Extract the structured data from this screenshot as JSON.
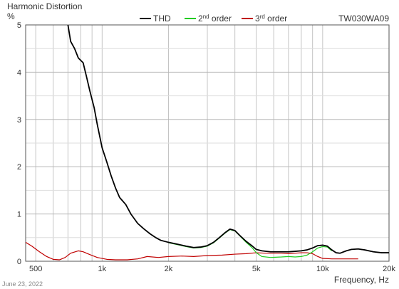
{
  "chart_data": {
    "type": "line",
    "title": "Harmonic Distortion",
    "ylabel": "%",
    "xlabel": "Frequency, Hz",
    "model": "TW030WA09",
    "date": "June 23, 2022",
    "x_scale": "log",
    "xlim": [
      450,
      20000
    ],
    "ylim": [
      0,
      5
    ],
    "grid": true,
    "legend_position": "top-center",
    "x_tick_labels": [
      {
        "value": 500,
        "label": "500"
      },
      {
        "value": 1000,
        "label": "1k"
      },
      {
        "value": 2000,
        "label": "2k"
      },
      {
        "value": 5000,
        "label": "5k"
      },
      {
        "value": 10000,
        "label": "10k"
      },
      {
        "value": 20000,
        "label": "20k"
      }
    ],
    "y_ticks": [
      0,
      1,
      2,
      3,
      4,
      5
    ],
    "series": [
      {
        "name": "THD",
        "legend_main": "THD",
        "legend_sup": "",
        "color": "#000000",
        "points": [
          [
            700,
            5.0
          ],
          [
            720,
            4.65
          ],
          [
            750,
            4.5
          ],
          [
            780,
            4.3
          ],
          [
            820,
            4.2
          ],
          [
            850,
            3.9
          ],
          [
            880,
            3.6
          ],
          [
            920,
            3.25
          ],
          [
            950,
            2.9
          ],
          [
            1000,
            2.4
          ],
          [
            1050,
            2.1
          ],
          [
            1100,
            1.8
          ],
          [
            1150,
            1.55
          ],
          [
            1200,
            1.35
          ],
          [
            1280,
            1.2
          ],
          [
            1350,
            1.0
          ],
          [
            1450,
            0.8
          ],
          [
            1550,
            0.68
          ],
          [
            1650,
            0.58
          ],
          [
            1750,
            0.5
          ],
          [
            1850,
            0.44
          ],
          [
            2000,
            0.4
          ],
          [
            2200,
            0.36
          ],
          [
            2400,
            0.32
          ],
          [
            2600,
            0.29
          ],
          [
            2800,
            0.3
          ],
          [
            3000,
            0.33
          ],
          [
            3200,
            0.4
          ],
          [
            3400,
            0.5
          ],
          [
            3600,
            0.6
          ],
          [
            3800,
            0.68
          ],
          [
            4000,
            0.65
          ],
          [
            4200,
            0.55
          ],
          [
            4500,
            0.42
          ],
          [
            4800,
            0.32
          ],
          [
            5000,
            0.25
          ],
          [
            5300,
            0.22
          ],
          [
            5800,
            0.2
          ],
          [
            6500,
            0.2
          ],
          [
            7000,
            0.2
          ],
          [
            7500,
            0.21
          ],
          [
            8000,
            0.22
          ],
          [
            8500,
            0.24
          ],
          [
            9000,
            0.28
          ],
          [
            9500,
            0.33
          ],
          [
            10000,
            0.34
          ],
          [
            10500,
            0.32
          ],
          [
            11000,
            0.24
          ],
          [
            11500,
            0.18
          ],
          [
            12000,
            0.17
          ],
          [
            12800,
            0.22
          ],
          [
            13500,
            0.25
          ],
          [
            14500,
            0.26
          ],
          [
            15500,
            0.24
          ],
          [
            17000,
            0.2
          ],
          [
            18500,
            0.18
          ],
          [
            20000,
            0.18
          ]
        ]
      },
      {
        "name": "2nd order",
        "legend_main": "2",
        "legend_sup": "nd",
        "legend_rest": " order",
        "color": "#22cc22",
        "points": [
          [
            2000,
            0.39
          ],
          [
            2200,
            0.35
          ],
          [
            2400,
            0.31
          ],
          [
            2600,
            0.28
          ],
          [
            2800,
            0.29
          ],
          [
            3000,
            0.32
          ],
          [
            3200,
            0.39
          ],
          [
            3400,
            0.49
          ],
          [
            3600,
            0.59
          ],
          [
            3800,
            0.67
          ],
          [
            4000,
            0.64
          ],
          [
            4200,
            0.54
          ],
          [
            4500,
            0.4
          ],
          [
            4800,
            0.28
          ],
          [
            5000,
            0.18
          ],
          [
            5300,
            0.1
          ],
          [
            5800,
            0.08
          ],
          [
            6500,
            0.09
          ],
          [
            7000,
            0.1
          ],
          [
            7500,
            0.09
          ],
          [
            8000,
            0.1
          ],
          [
            8500,
            0.13
          ],
          [
            9000,
            0.2
          ],
          [
            9500,
            0.28
          ],
          [
            10000,
            0.31
          ],
          [
            10500,
            0.3
          ],
          [
            11000,
            0.22
          ]
        ]
      },
      {
        "name": "3rd order",
        "legend_main": "3",
        "legend_sup": "rd",
        "legend_rest": " order",
        "color": "#c00000",
        "points": [
          [
            450,
            0.4
          ],
          [
            480,
            0.32
          ],
          [
            520,
            0.2
          ],
          [
            560,
            0.1
          ],
          [
            600,
            0.04
          ],
          [
            640,
            0.03
          ],
          [
            680,
            0.08
          ],
          [
            720,
            0.17
          ],
          [
            780,
            0.22
          ],
          [
            820,
            0.2
          ],
          [
            880,
            0.14
          ],
          [
            950,
            0.08
          ],
          [
            1050,
            0.04
          ],
          [
            1150,
            0.03
          ],
          [
            1300,
            0.03
          ],
          [
            1450,
            0.05
          ],
          [
            1600,
            0.1
          ],
          [
            1800,
            0.08
          ],
          [
            2000,
            0.1
          ],
          [
            2300,
            0.11
          ],
          [
            2600,
            0.1
          ],
          [
            3000,
            0.12
          ],
          [
            3500,
            0.13
          ],
          [
            4000,
            0.15
          ],
          [
            4500,
            0.16
          ],
          [
            5000,
            0.18
          ],
          [
            5500,
            0.17
          ],
          [
            6000,
            0.17
          ],
          [
            6500,
            0.17
          ],
          [
            7000,
            0.16
          ],
          [
            7500,
            0.17
          ],
          [
            8000,
            0.18
          ],
          [
            8500,
            0.18
          ],
          [
            9000,
            0.16
          ],
          [
            9500,
            0.1
          ],
          [
            10000,
            0.06
          ],
          [
            11000,
            0.05
          ],
          [
            12000,
            0.05
          ],
          [
            13500,
            0.05
          ],
          [
            14500,
            0.05
          ]
        ]
      }
    ]
  }
}
